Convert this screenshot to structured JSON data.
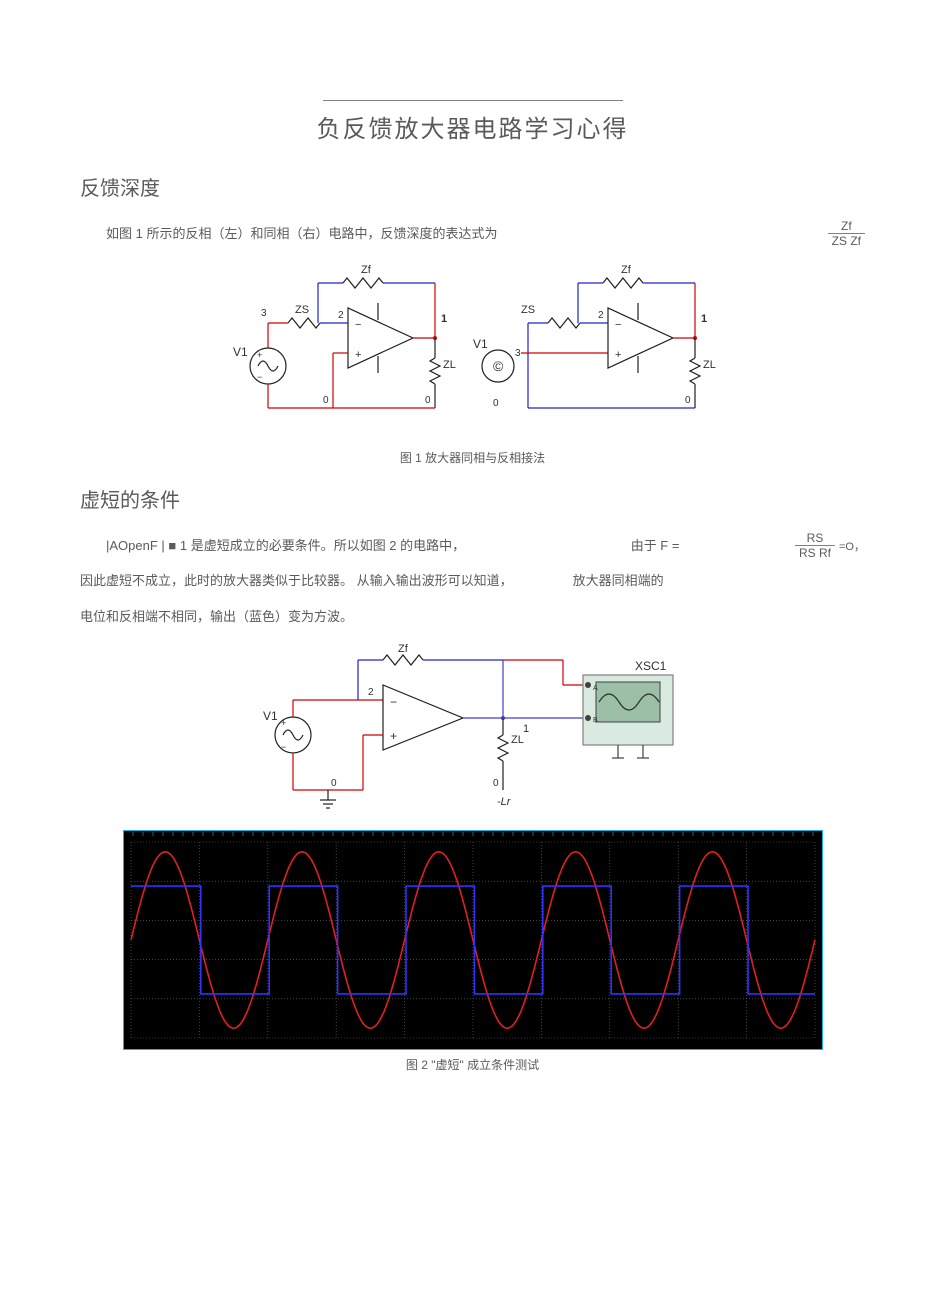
{
  "title": "负反馈放大器电路学习心得",
  "section1": {
    "heading": "反馈深度",
    "para": "如图 1 所示的反相（左）和同相（右）电路中，反馈深度的表达式为",
    "frac": {
      "num": "Zf",
      "den": "ZS  Zf"
    }
  },
  "fig1": {
    "labels": {
      "Zf": "Zf",
      "ZS": "ZS",
      "ZL": "ZL",
      "V1": "V1"
    },
    "node0": "0",
    "node1": "1",
    "node2": "2",
    "node3": "3",
    "caption": "图 1 放大器同相与反相接法",
    "colors": {
      "wire_red": "#d40000",
      "wire_blue": "#2020d0",
      "comp": "#202020"
    }
  },
  "section2": {
    "heading": "虚短的条件",
    "para1a": "|AOpenF | ■ 1 是虚短成立的必要条件。所以如图 2 的电路中，",
    "para1b": "由于 F =",
    "frac": {
      "num": "RS",
      "postnum": "=O，",
      "den": "RS  Rf"
    },
    "para2": "因此虚短不成立，此时的放大器类似于比较器。 从输入输出波形可以知道，",
    "para2b": "放大器同相端的",
    "para3": "电位和反相端不相同，输出（蓝色）变为方波。"
  },
  "fig2": {
    "labels": {
      "Zf": "Zf",
      "ZL": "ZL",
      "V1": "V1",
      "XSC1": "XSC1",
      "neg0": "0",
      "node1": "1",
      "node2": "2",
      "Lr": "-Lr"
    },
    "caption": "图 2  \"虚短\" 成立条件测试",
    "scope": {
      "bg": "#000000",
      "grid": "#6b6b6b",
      "border": "#13b5ea",
      "sine_color": "#e02020",
      "square_color": "#3030ff",
      "periods": 5,
      "sine_amp_ratio": 0.9,
      "square_amp_ratio": 0.55
    }
  }
}
